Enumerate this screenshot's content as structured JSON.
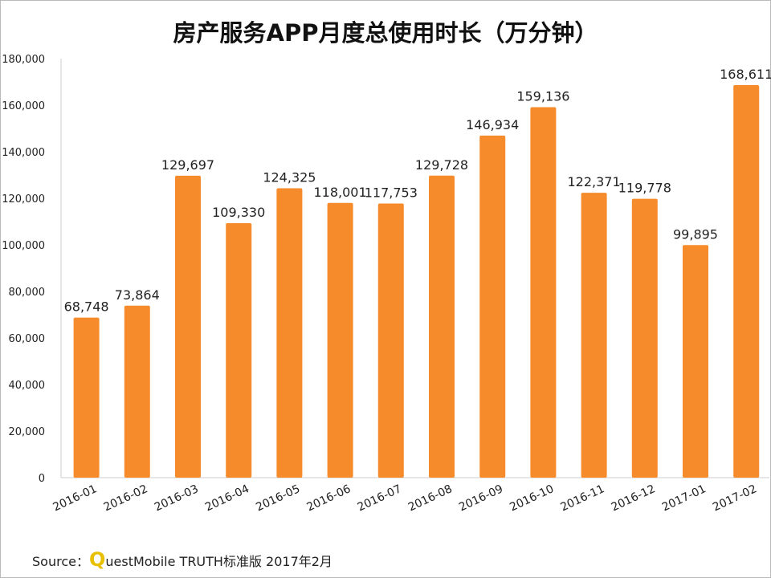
{
  "chart_data": {
    "type": "bar",
    "title": "房产服务APP月度总使用时长（万分钟）",
    "categories": [
      "2016-01",
      "2016-02",
      "2016-03",
      "2016-04",
      "2016-05",
      "2016-06",
      "2016-07",
      "2016-08",
      "2016-09",
      "2016-10",
      "2016-11",
      "2016-12",
      "2017-01",
      "2017-02"
    ],
    "values": [
      68748,
      73864,
      129697,
      109330,
      124325,
      118001,
      117753,
      129728,
      146934,
      159136,
      122371,
      119778,
      99895,
      168611
    ],
    "data_labels": [
      "68,748",
      "73,864",
      "129,697",
      "109,330",
      "124,325",
      "118,001",
      "117,753",
      "129,728",
      "146,934",
      "159,136",
      "122,371",
      "119,778",
      "99,895",
      "168,611"
    ],
    "ylim": [
      0,
      180000
    ],
    "yticks": [
      "0",
      "20,000",
      "40,000",
      "60,000",
      "80,000",
      "100,000",
      "120,000",
      "140,000",
      "160,000",
      "180,000"
    ],
    "grid": false,
    "bar_color": "#F58B2A"
  },
  "source": {
    "prefix": "Source：",
    "logo_letter": "Q",
    "text": "uestMobile TRUTH标准版 2017年2月"
  }
}
